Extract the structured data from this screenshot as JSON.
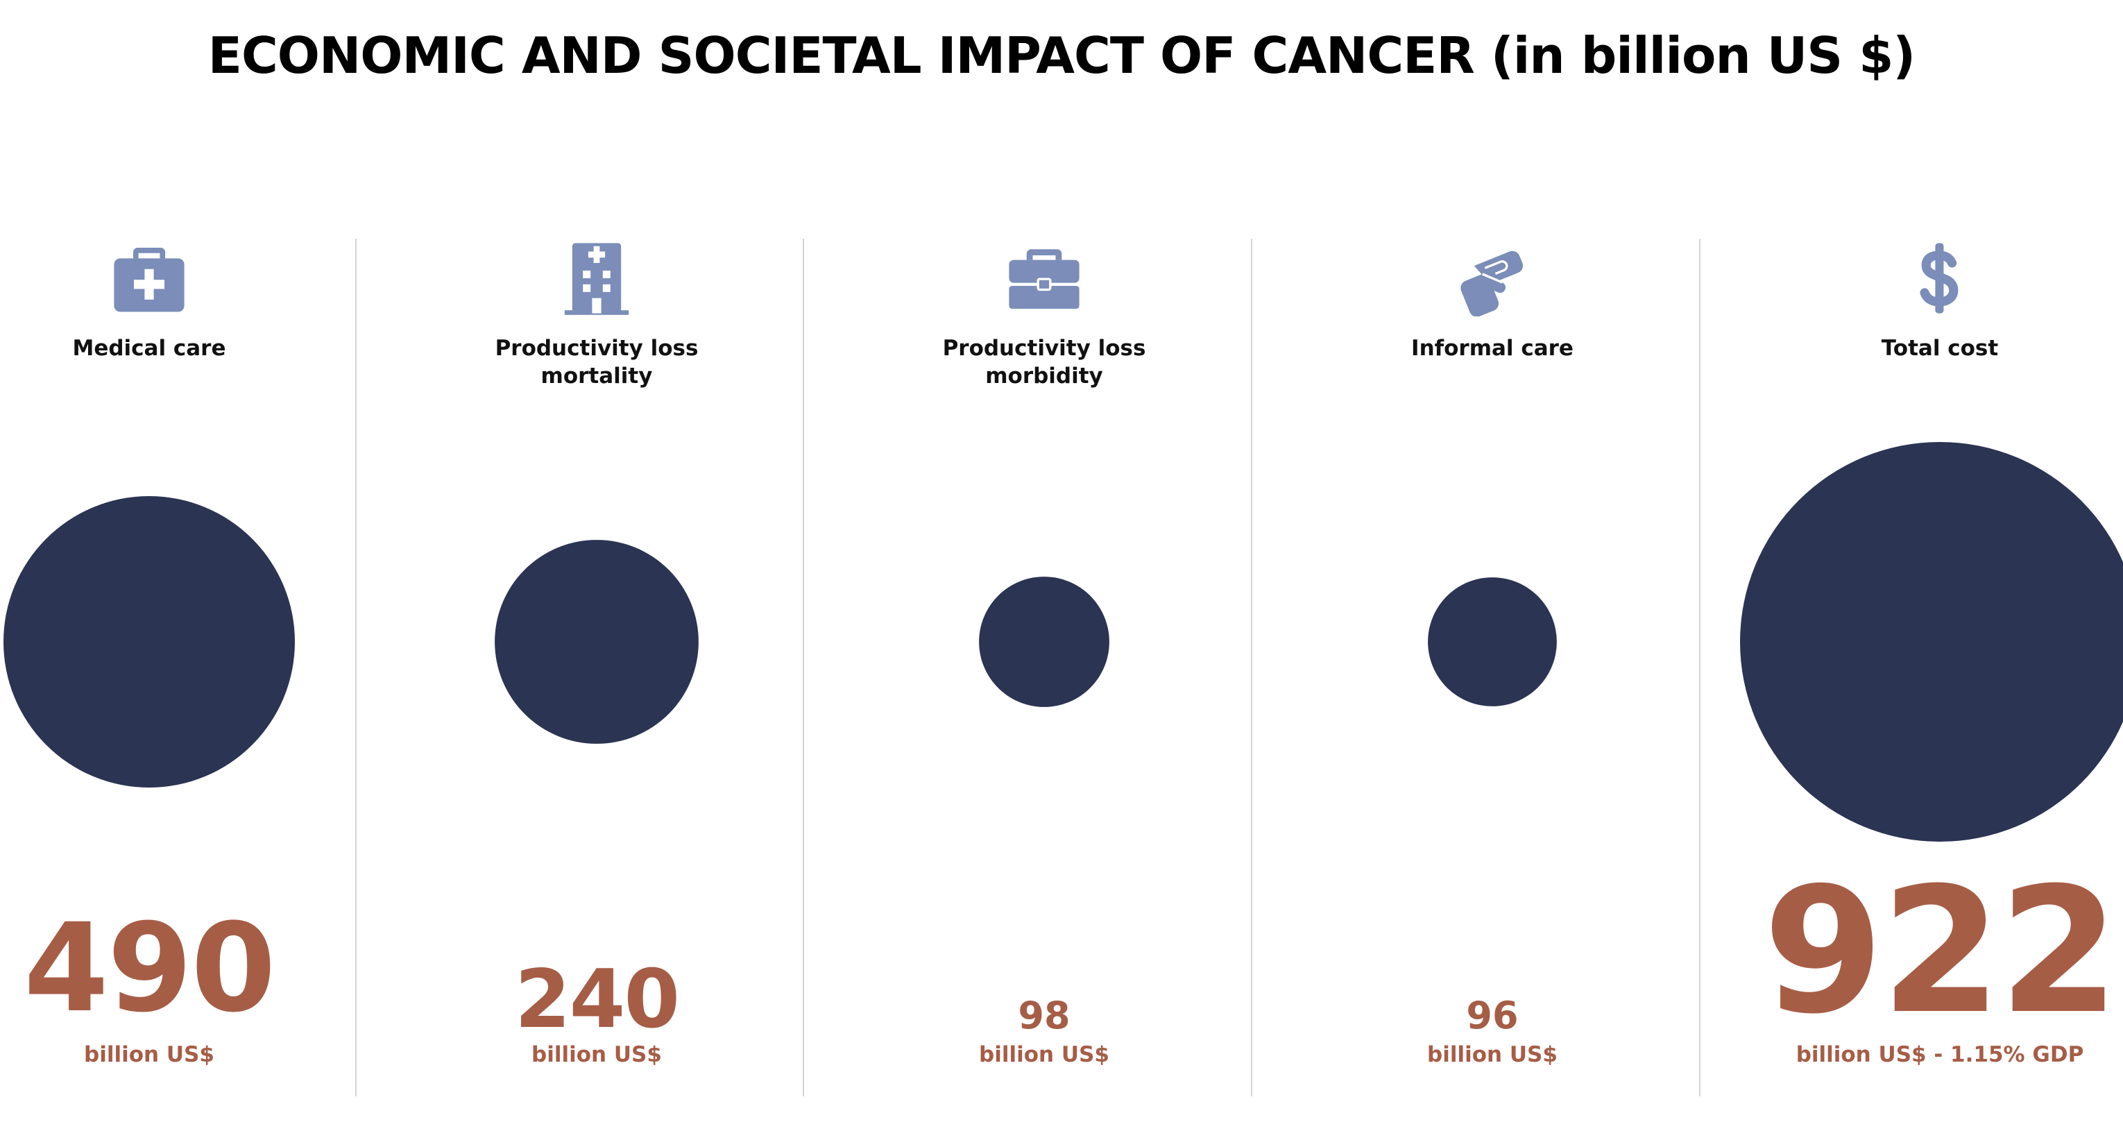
{
  "title": "ECONOMIC AND SOCIETAL IMPACT OF CANCER (in billion US $)",
  "colors": {
    "bubble": "#2b3452",
    "value": "#a65d46",
    "icon": "#7b8db8",
    "divider": "#d4d4d4"
  },
  "chart_data": {
    "type": "bubble",
    "title": "ECONOMIC AND SOCIETAL IMPACT OF CANCER (in billion US $)",
    "categories": [
      {
        "label": "Medical care",
        "icon": "medical-kit-icon",
        "value": 490,
        "value_text": "490",
        "unit": "billion US$"
      },
      {
        "label": "Productivity loss\nmortality",
        "icon": "hospital-building-icon",
        "value": 240,
        "value_text": "240",
        "unit": "billion US$"
      },
      {
        "label": "Productivity loss\nmorbidity",
        "icon": "briefcase-icon",
        "value": 98,
        "value_text": "98",
        "unit": "billion US$"
      },
      {
        "label": "Informal care",
        "icon": "helping-hands-icon",
        "value": 96,
        "value_text": "96",
        "unit": "billion US$"
      },
      {
        "label": "Total cost",
        "icon": "dollar-icon",
        "value": 922,
        "value_text": "922",
        "unit": "billion US$ - 1.15% GDP"
      }
    ]
  }
}
